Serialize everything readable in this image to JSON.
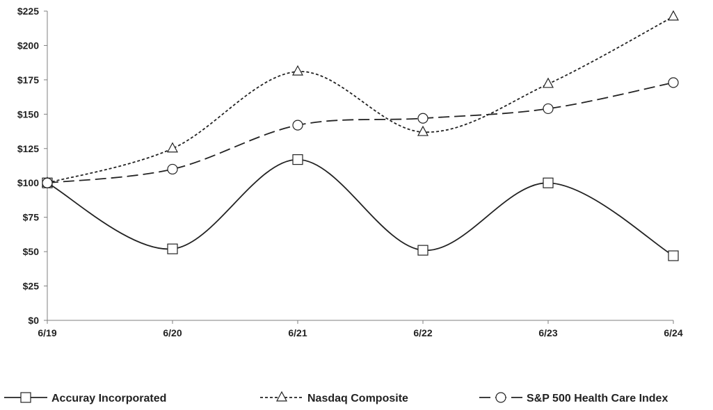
{
  "chart_data": {
    "type": "line",
    "title": "",
    "xlabel": "",
    "ylabel": "",
    "categories": [
      "6/19",
      "6/20",
      "6/21",
      "6/22",
      "6/23",
      "6/24"
    ],
    "ylim": [
      0,
      225
    ],
    "yticks": [
      "$0",
      "$25",
      "$50",
      "$75",
      "$100",
      "$125",
      "$150",
      "$175",
      "$200",
      "$225"
    ],
    "grid": false,
    "legend_position": "bottom",
    "series": [
      {
        "name": "Accuray Incorporated",
        "values": [
          100,
          52,
          117,
          51,
          100,
          47
        ],
        "line_style": "solid",
        "marker": "square",
        "color": "#222222"
      },
      {
        "name": "Nasdaq Composite",
        "values": [
          100,
          125,
          181,
          137,
          172,
          221
        ],
        "line_style": "short-dash",
        "marker": "triangle",
        "color": "#222222"
      },
      {
        "name": "S&P 500 Health Care Index",
        "values": [
          100,
          110,
          142,
          147,
          154,
          173
        ],
        "line_style": "long-dash",
        "marker": "circle",
        "color": "#222222"
      }
    ]
  }
}
